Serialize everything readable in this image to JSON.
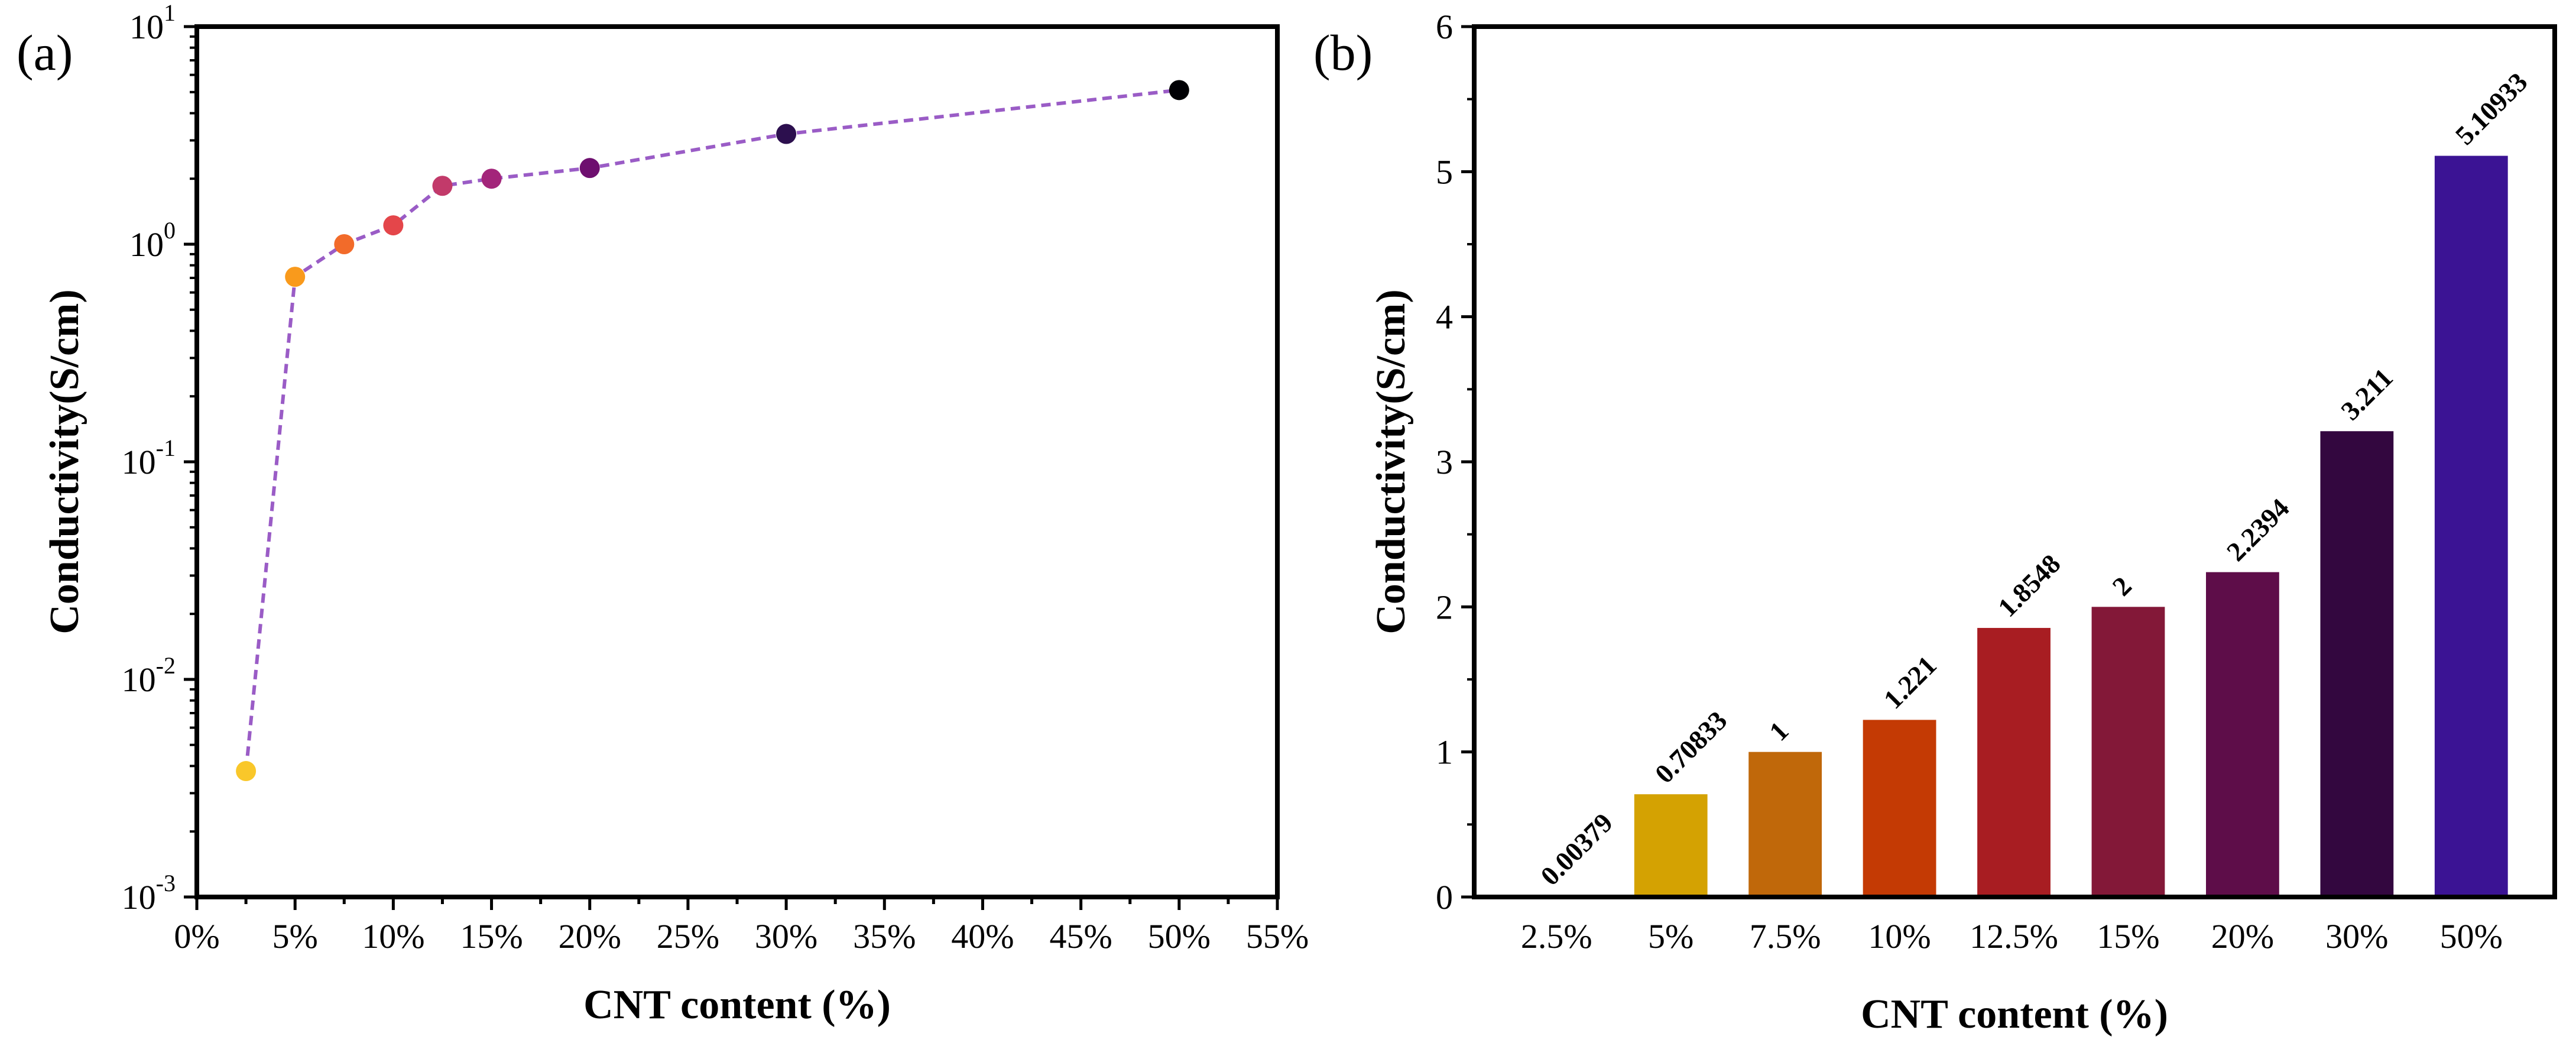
{
  "chart_data": [
    {
      "panel_label": "(a)",
      "type": "scatter",
      "xlabel": "CNT content (%)",
      "ylabel": "Conductivity(S/cm)",
      "xlim": [
        0,
        55
      ],
      "x_ticks": [
        "0%",
        "5%",
        "10%",
        "15%",
        "20%",
        "25%",
        "30%",
        "35%",
        "40%",
        "45%",
        "50%",
        "55%"
      ],
      "yscale": "log",
      "ylim": [
        0.001,
        10
      ],
      "y_ticks": [
        {
          "base": "10",
          "exp": "-3"
        },
        {
          "base": "10",
          "exp": "-2"
        },
        {
          "base": "10",
          "exp": "-1"
        },
        {
          "base": "10",
          "exp": "0"
        },
        {
          "base": "10",
          "exp": "1"
        }
      ],
      "line_style": "dashed",
      "line_color": "#9a5cc6",
      "series": [
        {
          "name": "Conductivity",
          "x": [
            2.5,
            5,
            7.5,
            10,
            12.5,
            15,
            20,
            30,
            50
          ],
          "y": [
            0.00379,
            0.70833,
            1,
            1.221,
            1.8548,
            2,
            2.2394,
            3.211,
            5.10933
          ],
          "colors": [
            "#f9c72a",
            "#f99a1c",
            "#f26b2a",
            "#e4464a",
            "#c23a6a",
            "#a3257a",
            "#6e0f6f",
            "#2c0f4e",
            "#000004"
          ]
        }
      ]
    },
    {
      "panel_label": "(b)",
      "type": "bar",
      "xlabel": "CNT content (%)",
      "ylabel": "Conductivity(S/cm)",
      "ylim": [
        0,
        6
      ],
      "y_ticks": [
        "0",
        "1",
        "2",
        "3",
        "4",
        "5",
        "6"
      ],
      "categories": [
        "2.5%",
        "5%",
        "7.5%",
        "10%",
        "12.5%",
        "15%",
        "20%",
        "30%",
        "50%"
      ],
      "values": [
        0.00379,
        0.70833,
        1,
        1.221,
        1.8548,
        2,
        2.2394,
        3.211,
        5.10933
      ],
      "value_labels": [
        "0.00379",
        "0.70833",
        "1",
        "1.221",
        "1.8548",
        "2",
        "2.2394",
        "3.211",
        "5.10933"
      ],
      "colors": [
        "#e8b40a",
        "#d4a202",
        "#c0680a",
        "#c43a04",
        "#a81d22",
        "#831838",
        "#5e0d49",
        "#33073f",
        "#3b1394"
      ]
    }
  ]
}
